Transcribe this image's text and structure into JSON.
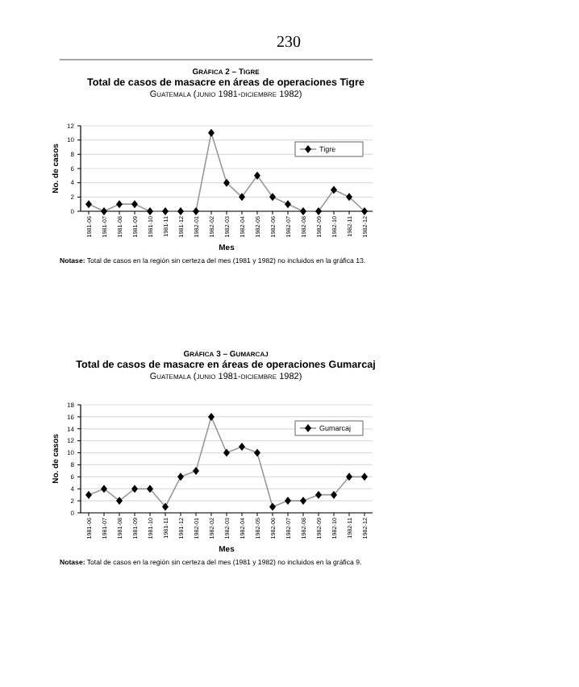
{
  "chart_data": [
    {
      "type": "line",
      "title": "Gráfica 2 – Tigre",
      "subtitle": "Total de casos de masacre en áreas de operaciones Tigre",
      "annotations": [
        "230",
        "Guatemala (junio 1981-diciembre 1982)",
        "Notase: Total de casos en la región sin certeza del mes (1981 y 1982) no incluidos en la gráfica 13."
      ],
      "xlabel": "Mes",
      "ylabel": "No. de casos",
      "categories": [
        "1981-06",
        "1981-07",
        "1981-08",
        "1981-09",
        "1981-10",
        "1981-11",
        "1981-12",
        "1982-01",
        "1982-02",
        "1982-03",
        "1982-04",
        "1982-05",
        "1982-06",
        "1982-07",
        "1982-08",
        "1982-09",
        "1982-10",
        "1982-11",
        "1982-12"
      ],
      "series": [
        {
          "name": "Tigre",
          "color": "#999999",
          "values": [
            1,
            0,
            1,
            1,
            0,
            0,
            0,
            0,
            11,
            4,
            2,
            5,
            2,
            1,
            0,
            0,
            3,
            2,
            0
          ]
        }
      ],
      "ylim": [
        0,
        12
      ],
      "yticks": [
        0,
        2,
        4,
        6,
        8,
        10,
        12
      ],
      "grid": "y",
      "legend": "top right",
      "marker": "diamond"
    },
    {
      "type": "line",
      "title": "Gráfica 3 – Gumarcaj",
      "subtitle": "Total de casos de masacre en áreas de operaciones Gumarcaj",
      "annotations": [
        "Guatemala (junio 1981-diciembre 1982)",
        "Notase: Total de casos en la región sin certeza del mes (1981 y 1982) no incluidos en la gráfica 9."
      ],
      "xlabel": "Mes",
      "ylabel": "No. de casos",
      "categories": [
        "1981-06",
        "1981-07",
        "1981-08",
        "1981-09",
        "1981-10",
        "1981-11",
        "1981-12",
        "1982-01",
        "1982-02",
        "1982-03",
        "1982-04",
        "1982-05",
        "1982-06",
        "1982-07",
        "1982-08",
        "1982-09",
        "1982-10",
        "1982-11",
        "1982-12"
      ],
      "series": [
        {
          "name": "Gumarcaj",
          "color": "#999999",
          "values": [
            3,
            4,
            2,
            4,
            4,
            1,
            6,
            7,
            16,
            10,
            11,
            10,
            1,
            2,
            2,
            3,
            3,
            6,
            6
          ]
        }
      ],
      "ylim": [
        0,
        18
      ],
      "yticks": [
        0,
        2,
        4,
        6,
        8,
        10,
        12,
        14,
        16,
        18
      ],
      "grid": "y",
      "legend": "top right",
      "marker": "diamond"
    }
  ]
}
